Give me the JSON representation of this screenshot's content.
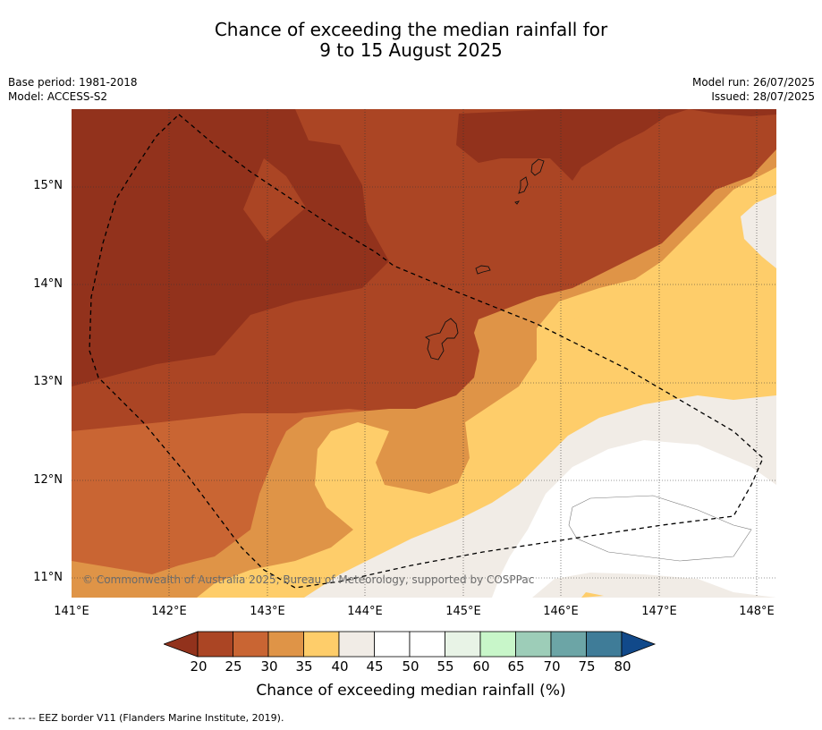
{
  "title_line1": "Chance of exceeding the median rainfall for",
  "title_line2": "9 to 15 August 2025",
  "meta_left": {
    "base_period": "Base period: 1981-2018",
    "model": "Model: ACCESS-S2"
  },
  "meta_right": {
    "model_run": "Model run: 26/07/2025",
    "issued": "Issued: 28/07/2025"
  },
  "lat_labels": [
    "15°N",
    "14°N",
    "13°N",
    "12°N",
    "11°N"
  ],
  "lon_labels": [
    "141°E",
    "142°E",
    "143°E",
    "144°E",
    "145°E",
    "146°E",
    "147°E",
    "148°E"
  ],
  "copyright": "© Commonwealth of Australia 2025, Bureau of Meteorology, supported by COSPPac",
  "colorbar": {
    "ticks": [
      "20",
      "25",
      "30",
      "35",
      "40",
      "45",
      "50",
      "55",
      "60",
      "65",
      "70",
      "75",
      "80"
    ],
    "colors": [
      "#92321c",
      "#ab4524",
      "#c96533",
      "#df9447",
      "#fecd6a",
      "#f1ece6",
      "#ffffff",
      "#ffffff",
      "#e8f3e6",
      "#c8f6c9",
      "#9dcdb8",
      "#6ca5a6",
      "#3f7c98",
      "#11498a"
    ],
    "label": "Chance of exceeding median rainfall (%)"
  },
  "footer": "--  --  -- EEZ border V11 (Flanders Marine Institute, 2019)."
}
